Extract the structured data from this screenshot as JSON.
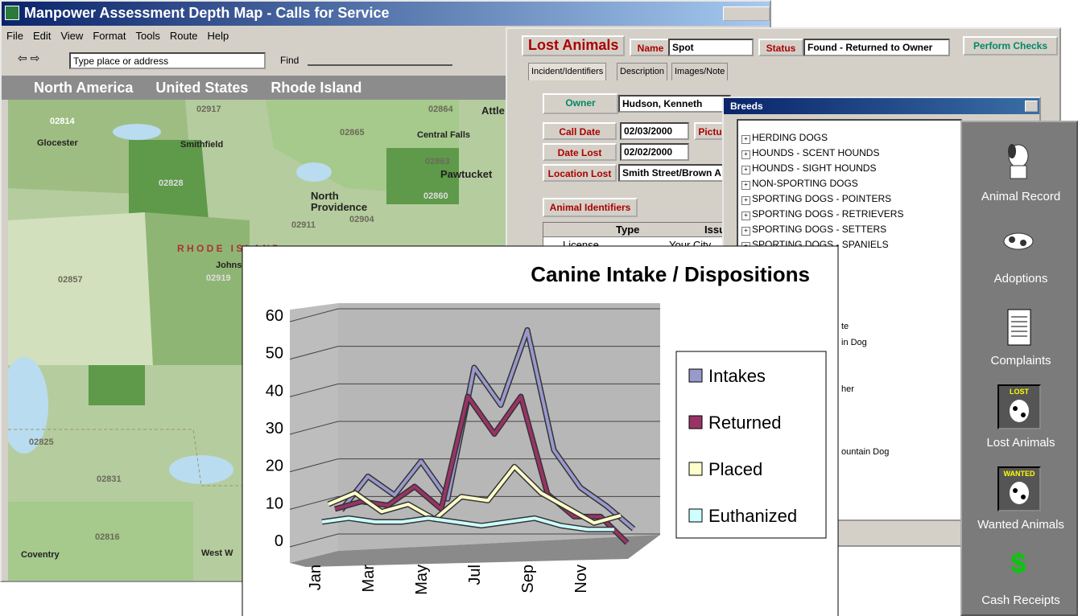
{
  "map_window": {
    "title": "Manpower Assessment Depth Map - Calls for Service",
    "menu": [
      "File",
      "Edit",
      "View",
      "Format",
      "Tools",
      "Route",
      "Help"
    ],
    "search_placeholder": "Type place or address",
    "find": "Find",
    "breadcrumb": [
      "North America",
      "United States",
      "Rhode Island"
    ],
    "labels": [
      "02814",
      "Glocester",
      "Smithfield",
      "02917",
      "02865",
      "Central Falls",
      "02863",
      "Pawtucket",
      "02828",
      "North Providence",
      "02911",
      "02904",
      "02860",
      "R H O D E   I S L A N D",
      "Johnston",
      "02919",
      "02857",
      "02825",
      "02831",
      "02816",
      "Coventry",
      "West W",
      "Attle",
      "02864"
    ]
  },
  "lost_animals": {
    "title": "Lost Animals",
    "name_label": "Name",
    "name": "Spot",
    "status_label": "Status",
    "status": "Found - Returned to Owner",
    "checks": "Perform Checks",
    "tabs": [
      "Incident/Identifiers",
      "Description",
      "Images/Note"
    ],
    "owner_label": "Owner",
    "owner": "Hudson, Kenneth",
    "call_date_label": "Call Date",
    "call_date": "02/03/2000",
    "picture_label": "Pictu",
    "date_lost_label": "Date Lost",
    "date_lost": "02/02/2000",
    "location_label": "Location Lost",
    "location": "Smith Street/Brown A",
    "identifiers": "Animal Identifiers",
    "columns": [
      "Type",
      "Issu"
    ],
    "row": [
      "License",
      "Your City"
    ]
  },
  "breeds": {
    "title": "Breeds",
    "items": [
      "HERDING DOGS",
      "HOUNDS - SCENT HOUNDS",
      "HOUNDS - SIGHT HOUNDS",
      "NON-SPORTING DOGS",
      "SPORTING DOGS - POINTERS",
      "SPORTING DOGS - RETRIEVERS",
      "SPORTING DOGS - SETTERS",
      "SPORTING DOGS - SPANIELS"
    ],
    "partial": [
      "te",
      "in Dog",
      "her",
      "ountain Dog"
    ]
  },
  "sidebar": {
    "items": [
      "Animal Record",
      "Adoptions",
      "Complaints",
      "Lost Animals",
      "Wanted Animals",
      "Cash Receipts"
    ],
    "badges": [
      "LOST",
      "WANTED"
    ]
  },
  "chart_data": {
    "type": "line",
    "title": "Canine Intake / Dispositions",
    "categories": [
      "Jan",
      null,
      "Mar",
      null,
      "May",
      null,
      "Jul",
      null,
      "Sep",
      null,
      "Nov",
      null
    ],
    "series": [
      {
        "name": "Intakes",
        "color": "#9999cc",
        "values": [
          10,
          19,
          14,
          23,
          13,
          48,
          38,
          58,
          26,
          16,
          11,
          5
        ]
      },
      {
        "name": "Returned",
        "color": "#993366",
        "values": [
          9,
          11,
          10,
          15,
          9,
          39,
          29,
          39,
          13,
          7,
          7,
          0
        ]
      },
      {
        "name": "Placed",
        "color": "#ffffcc",
        "values": [
          9,
          12,
          7,
          9,
          5,
          11,
          10,
          19,
          12,
          8,
          4,
          6
        ]
      },
      {
        "name": "Euthanized",
        "color": "#ccffff",
        "values": [
          3,
          4,
          3,
          3,
          4,
          3,
          2,
          3,
          4,
          2,
          1,
          1
        ]
      }
    ],
    "ylim": [
      0,
      60
    ],
    "yticks": [
      0,
      10,
      20,
      30,
      40,
      50,
      60
    ],
    "grid": true,
    "legend": "right"
  }
}
